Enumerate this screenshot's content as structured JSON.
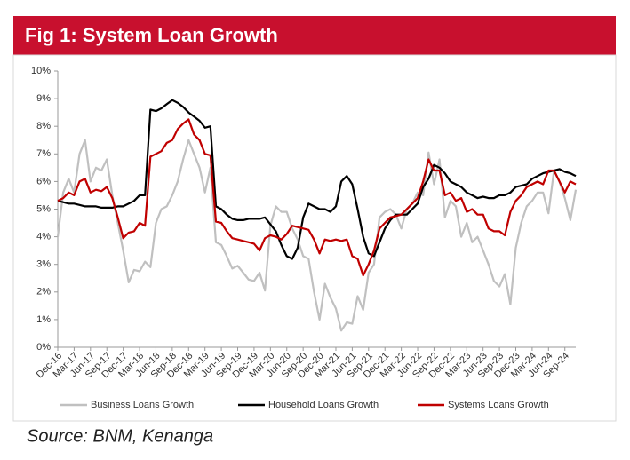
{
  "chart_data": {
    "type": "line",
    "title": "Fig 1: System Loan Growth",
    "source": "Source: BNM, Kenanga",
    "categories": [
      "Dec-16",
      null,
      null,
      "Mar-17",
      null,
      null,
      "Jun-17",
      null,
      null,
      "Sep-17",
      null,
      null,
      "Dec-17",
      null,
      null,
      "Mar-18",
      null,
      null,
      "Jun-18",
      null,
      null,
      "Sep-18",
      null,
      null,
      "Dec-18",
      null,
      null,
      "Mar-19",
      null,
      null,
      "Jun-19",
      null,
      null,
      "Sep-19",
      null,
      null,
      "Dec-19",
      null,
      null,
      "Mar-20",
      null,
      null,
      "Jun-20",
      null,
      null,
      "Sep-20",
      null,
      null,
      "Dec-20",
      null,
      null,
      "Mar-21",
      null,
      null,
      "Jun-21",
      null,
      null,
      "Sep-21",
      null,
      null,
      "Dec-21",
      null,
      null,
      "Mar-22",
      null,
      null,
      "Jun-22",
      null,
      null,
      "Sep-22",
      null,
      null,
      "Dec-22",
      null,
      null,
      "Mar-23",
      null,
      null,
      "Jun-23",
      null,
      null,
      "Sep-23",
      null,
      null,
      "Dec-23",
      null,
      null,
      "Mar-24",
      null,
      null,
      "Jun-24",
      null,
      null,
      "Sep-24",
      null,
      null
    ],
    "series": [
      {
        "name": "Business Loans Growth",
        "color": "#c0c0c0",
        "values": [
          4.0,
          5.6,
          6.1,
          5.6,
          7.0,
          7.5,
          6.0,
          6.5,
          6.4,
          6.8,
          5.5,
          4.5,
          3.5,
          2.35,
          2.8,
          2.75,
          3.1,
          2.9,
          4.5,
          5.0,
          5.1,
          5.5,
          6.0,
          6.8,
          7.5,
          7.0,
          6.5,
          5.6,
          6.5,
          3.8,
          3.7,
          3.3,
          2.85,
          2.95,
          2.7,
          2.45,
          2.4,
          2.7,
          2.05,
          4.4,
          5.1,
          4.9,
          4.9,
          4.3,
          3.9,
          3.3,
          3.2,
          2.0,
          1.0,
          2.3,
          1.8,
          1.4,
          0.6,
          0.9,
          0.85,
          1.85,
          1.35,
          2.7,
          3.0,
          4.7,
          4.9,
          5.0,
          4.8,
          4.3,
          5.0,
          5.2,
          5.6,
          5.5,
          7.05,
          5.9,
          6.8,
          4.7,
          5.3,
          5.1,
          4.0,
          4.5,
          3.8,
          4.0,
          3.5,
          3.0,
          2.4,
          2.2,
          2.65,
          1.55,
          3.6,
          4.5,
          5.1,
          5.3,
          5.6,
          5.6,
          4.85,
          6.4,
          6.0,
          5.4,
          4.6,
          5.7
        ]
      },
      {
        "name": "Household Loans Growth",
        "color": "#000000",
        "values": [
          5.3,
          5.25,
          5.2,
          5.2,
          5.15,
          5.1,
          5.1,
          5.1,
          5.05,
          5.05,
          5.05,
          5.1,
          5.1,
          5.2,
          5.3,
          5.5,
          5.5,
          8.6,
          8.55,
          8.65,
          8.8,
          8.95,
          8.85,
          8.7,
          8.5,
          8.35,
          8.2,
          7.95,
          8.0,
          5.1,
          5.0,
          4.8,
          4.65,
          4.6,
          4.6,
          4.65,
          4.65,
          4.65,
          4.7,
          4.45,
          4.2,
          3.7,
          3.3,
          3.2,
          3.6,
          4.7,
          5.2,
          5.1,
          5.0,
          5.0,
          4.9,
          5.1,
          6.0,
          6.2,
          5.9,
          5.0,
          4.0,
          3.4,
          3.3,
          3.8,
          4.3,
          4.6,
          4.8,
          4.8,
          4.8,
          5.0,
          5.2,
          5.8,
          6.1,
          6.6,
          6.5,
          6.3,
          6.0,
          5.9,
          5.8,
          5.6,
          5.5,
          5.4,
          5.45,
          5.4,
          5.4,
          5.5,
          5.5,
          5.6,
          5.8,
          5.85,
          5.9,
          6.1,
          6.2,
          6.3,
          6.35,
          6.4,
          6.45,
          6.35,
          6.3,
          6.2
        ]
      },
      {
        "name": "Systems Loans Growth",
        "color": "#c00000",
        "values": [
          5.3,
          5.4,
          5.6,
          5.5,
          6.0,
          6.1,
          5.6,
          5.7,
          5.65,
          5.8,
          5.4,
          4.7,
          3.95,
          4.15,
          4.2,
          4.5,
          4.4,
          6.9,
          7.0,
          7.1,
          7.4,
          7.5,
          7.9,
          8.1,
          8.25,
          7.7,
          7.5,
          7.0,
          6.95,
          4.55,
          4.5,
          4.2,
          3.95,
          3.9,
          3.85,
          3.8,
          3.75,
          3.5,
          3.95,
          4.05,
          4.0,
          3.9,
          4.1,
          4.4,
          4.35,
          4.3,
          4.25,
          3.9,
          3.4,
          3.9,
          3.85,
          3.9,
          3.85,
          3.9,
          3.3,
          3.2,
          2.6,
          3.0,
          3.5,
          4.3,
          4.5,
          4.7,
          4.75,
          4.8,
          5.0,
          5.2,
          5.4,
          6.0,
          6.8,
          6.4,
          6.4,
          5.5,
          5.6,
          5.3,
          5.4,
          4.9,
          5.0,
          4.8,
          4.8,
          4.3,
          4.2,
          4.2,
          4.05,
          4.9,
          5.3,
          5.5,
          5.8,
          5.9,
          6.0,
          5.9,
          6.4,
          6.4,
          6.0,
          5.6,
          6.0,
          5.9
        ]
      }
    ],
    "ylim": [
      0,
      10
    ],
    "yticks": [
      {
        "value": 0,
        "label": "0%"
      },
      {
        "value": 1,
        "label": "1%"
      },
      {
        "value": 2,
        "label": "2%"
      },
      {
        "value": 3,
        "label": "3%"
      },
      {
        "value": 4,
        "label": "4%"
      },
      {
        "value": 5,
        "label": "5%"
      },
      {
        "value": 6,
        "label": "6%"
      },
      {
        "value": 7,
        "label": "7%"
      },
      {
        "value": 8,
        "label": "8%"
      },
      {
        "value": 9,
        "label": "9%"
      },
      {
        "value": 10,
        "label": "10%"
      }
    ],
    "legend": "bottom",
    "title_color": "#c8102e"
  }
}
